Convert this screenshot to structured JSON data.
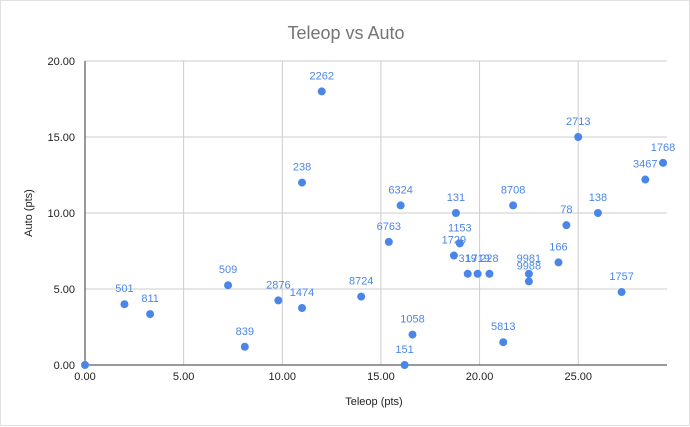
{
  "chart_data": {
    "type": "scatter",
    "title": "Teleop vs Auto",
    "xlabel": "Teleop (pts)",
    "ylabel": "Auto (pts)",
    "xlim": [
      0,
      29.5
    ],
    "ylim": [
      0,
      20
    ],
    "x_ticks": [
      "0.00",
      "5.00",
      "10.00",
      "15.00",
      "20.00",
      "25.00"
    ],
    "y_ticks": [
      "0.00",
      "5.00",
      "10.00",
      "15.00",
      "20.00"
    ],
    "grid": true,
    "legend": "none",
    "color": "#4a86e8",
    "points": [
      {
        "label": "",
        "x": 0.0,
        "y": 0.0
      },
      {
        "label": "501",
        "x": 2.0,
        "y": 4.0
      },
      {
        "label": "811",
        "x": 3.3,
        "y": 3.35
      },
      {
        "label": "509",
        "x": 7.25,
        "y": 5.25
      },
      {
        "label": "839",
        "x": 8.1,
        "y": 1.2
      },
      {
        "label": "2876",
        "x": 9.8,
        "y": 4.25
      },
      {
        "label": "238",
        "x": 11.0,
        "y": 12.0
      },
      {
        "label": "1474",
        "x": 11.0,
        "y": 3.75
      },
      {
        "label": "2262",
        "x": 12.0,
        "y": 18.0
      },
      {
        "label": "8724",
        "x": 14.0,
        "y": 4.5
      },
      {
        "label": "6763",
        "x": 15.4,
        "y": 8.1
      },
      {
        "label": "6324",
        "x": 16.0,
        "y": 10.5
      },
      {
        "label": "151",
        "x": 16.2,
        "y": 0.0
      },
      {
        "label": "1058",
        "x": 16.6,
        "y": 2.0
      },
      {
        "label": "131",
        "x": 18.8,
        "y": 10.0
      },
      {
        "label": "1153",
        "x": 19.0,
        "y": 8.0
      },
      {
        "label": "1729",
        "x": 18.7,
        "y": 7.2
      },
      {
        "label": "319",
        "x": 19.4,
        "y": 6.0
      },
      {
        "label": "1719",
        "x": 19.9,
        "y": 6.0
      },
      {
        "label": "228",
        "x": 20.5,
        "y": 6.0
      },
      {
        "label": "5813",
        "x": 21.2,
        "y": 1.5
      },
      {
        "label": "8708",
        "x": 21.7,
        "y": 10.5
      },
      {
        "label": "9981",
        "x": 22.5,
        "y": 6.0
      },
      {
        "label": "9988",
        "x": 22.5,
        "y": 5.5
      },
      {
        "label": "166",
        "x": 24.0,
        "y": 6.75
      },
      {
        "label": "78",
        "x": 24.4,
        "y": 9.2
      },
      {
        "label": "2713",
        "x": 25.0,
        "y": 15.0
      },
      {
        "label": "138",
        "x": 26.0,
        "y": 10.0
      },
      {
        "label": "1757",
        "x": 27.2,
        "y": 4.8
      },
      {
        "label": "3467",
        "x": 28.4,
        "y": 12.2
      },
      {
        "label": "1768",
        "x": 29.3,
        "y": 13.3
      }
    ]
  }
}
